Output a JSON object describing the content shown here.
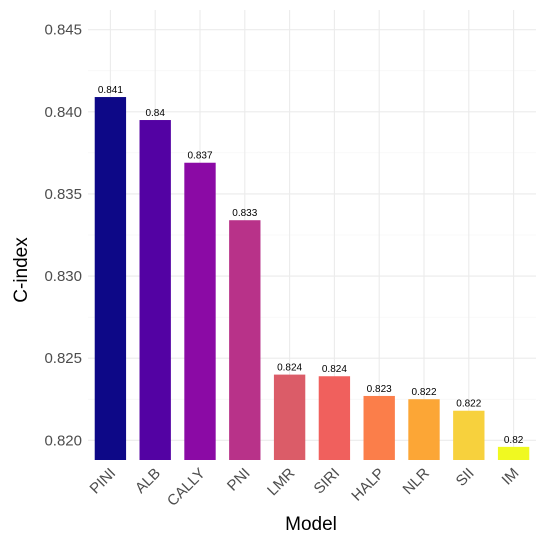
{
  "chart_data": {
    "type": "bar",
    "title": "",
    "xlabel": "Model",
    "ylabel": "C-index",
    "categories": [
      "PINI",
      "ALB",
      "CALLY",
      "PNI",
      "LMR",
      "SIRI",
      "HALP",
      "NLR",
      "SII",
      "IM"
    ],
    "values": [
      0.8409,
      0.8395,
      0.8369,
      0.8334,
      0.824,
      0.8239,
      0.8227,
      0.8225,
      0.8218,
      0.8196
    ],
    "data_labels": [
      "0.841",
      "0.84",
      "0.837",
      "0.833",
      "0.824",
      "0.824",
      "0.823",
      "0.822",
      "0.822",
      "0.82"
    ],
    "colors": [
      "#0d0887",
      "#5302a3",
      "#8b0aa5",
      "#b83289",
      "#db5c68",
      "#f0605d",
      "#fb7e4a",
      "#fca636",
      "#f7d13d",
      "#f0f921"
    ],
    "ylim": [
      0.8188,
      0.8462
    ],
    "yticks": [
      0.82,
      0.825,
      0.83,
      0.835,
      0.84,
      0.845
    ],
    "ytick_labels": [
      "0.820",
      "0.825",
      "0.830",
      "0.835",
      "0.840",
      "0.845"
    ],
    "grid": true,
    "legend": "none"
  }
}
